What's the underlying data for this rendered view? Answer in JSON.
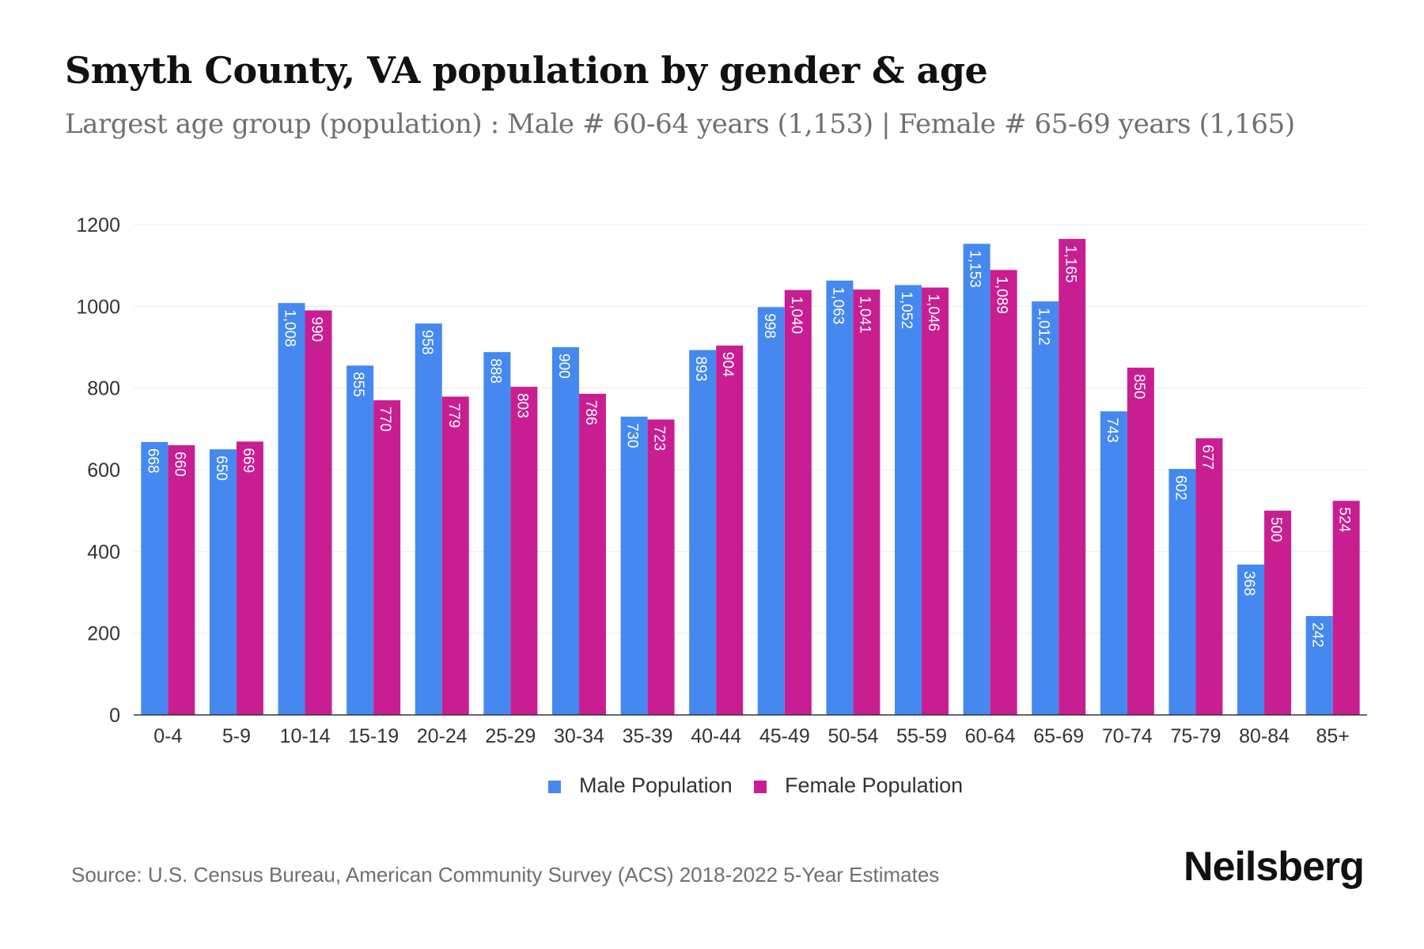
{
  "header": {
    "title": "Smyth County, VA population by gender & age",
    "subtitle": "Largest age group (population) : Male # 60-64 years (1,153) | Female # 65-69 years (1,165)"
  },
  "footer": {
    "source": "Source: U.S. Census Bureau, American Community Survey (ACS) 2018-2022 5-Year Estimates",
    "brand": "Neilsberg"
  },
  "chart_data": {
    "type": "bar",
    "categories": [
      "0-4",
      "5-9",
      "10-14",
      "15-19",
      "20-24",
      "25-29",
      "30-34",
      "35-39",
      "40-44",
      "45-49",
      "50-54",
      "55-59",
      "60-64",
      "65-69",
      "70-74",
      "75-79",
      "80-84",
      "85+"
    ],
    "series": [
      {
        "name": "Male Population",
        "color": "#4589f0",
        "values": [
          668,
          650,
          1008,
          855,
          958,
          888,
          900,
          730,
          893,
          998,
          1063,
          1052,
          1153,
          1012,
          743,
          602,
          368,
          242
        ],
        "labels": [
          "668",
          "650",
          "1,008",
          "855",
          "958",
          "888",
          "900",
          "730",
          "893",
          "998",
          "1,063",
          "1,052",
          "1,153",
          "1,012",
          "743",
          "602",
          "368",
          "242"
        ]
      },
      {
        "name": "Female Population",
        "color": "#c91e92",
        "values": [
          660,
          669,
          990,
          770,
          779,
          803,
          786,
          723,
          904,
          1040,
          1041,
          1046,
          1089,
          1165,
          850,
          677,
          500,
          524
        ],
        "labels": [
          "660",
          "669",
          "990",
          "770",
          "779",
          "803",
          "786",
          "723",
          "904",
          "1,040",
          "1,041",
          "1,046",
          "1,089",
          "1,165",
          "850",
          "677",
          "500",
          "524"
        ]
      }
    ],
    "ylim": [
      0,
      1200
    ],
    "yticks": [
      0,
      200,
      400,
      600,
      800,
      1000,
      1200
    ],
    "grid": true,
    "legend": "bottom"
  }
}
